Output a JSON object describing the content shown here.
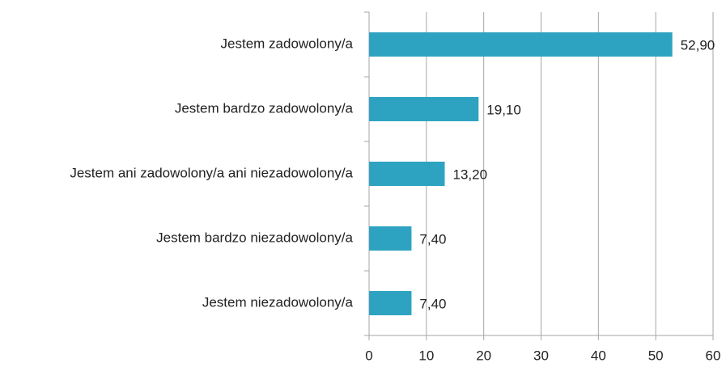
{
  "chart_data": {
    "type": "bar",
    "orientation": "horizontal",
    "categories": [
      "Jestem zadowolony/a",
      "Jestem bardzo zadowolony/a",
      "Jestem ani zadowolony/a ani niezadowolony/a",
      "Jestem bardzo niezadowolony/a",
      "Jestem niezadowolony/a"
    ],
    "values": [
      52.9,
      19.1,
      13.2,
      7.4,
      7.4
    ],
    "value_labels": [
      "52,90",
      "19,10",
      "13,20",
      "7,40",
      "7,40"
    ],
    "color": "#2ea3c1",
    "xlim": [
      0,
      60
    ],
    "xticks": [
      0,
      10,
      20,
      30,
      40,
      50,
      60
    ],
    "grid": true
  }
}
